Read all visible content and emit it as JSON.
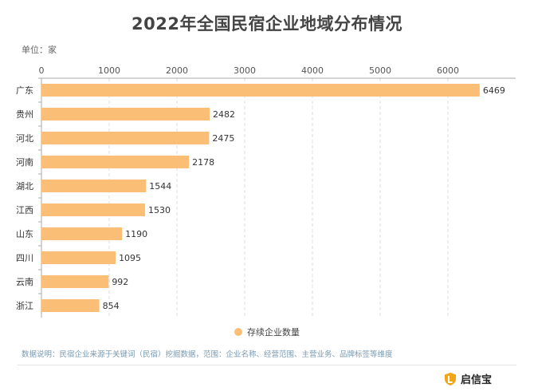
{
  "title": "2022年全国民宿企业地域分布情况",
  "unit_label": "单位：家",
  "note": "数据说明：民宿企业来源于关键词（民宿）挖掘数据，范围：企业名称、经营范围、主营业务、品牌标签等维度",
  "brand": "启信宝",
  "colors": {
    "bar": "#FBBE77",
    "grid": "#dddddd",
    "axis": "#aaaaaa",
    "text": "#333333",
    "note": "#7a9ab0",
    "brand_accent": "#F2A516"
  },
  "chart_data": {
    "type": "bar",
    "orientation": "horizontal",
    "categories": [
      "广东",
      "贵州",
      "河北",
      "河南",
      "湖北",
      "江西",
      "山东",
      "四川",
      "云南",
      "浙江"
    ],
    "series": [
      {
        "name": "存续企业数量",
        "values": [
          6469,
          2482,
          2475,
          2178,
          1544,
          1530,
          1190,
          1095,
          992,
          854
        ]
      }
    ],
    "xlim": [
      0,
      7000
    ],
    "xticks": [
      0,
      1000,
      2000,
      3000,
      4000,
      5000,
      6000
    ],
    "grid": true,
    "grid_style": "dashed vertical",
    "legend_position": "bottom-center",
    "data_labels": true
  }
}
